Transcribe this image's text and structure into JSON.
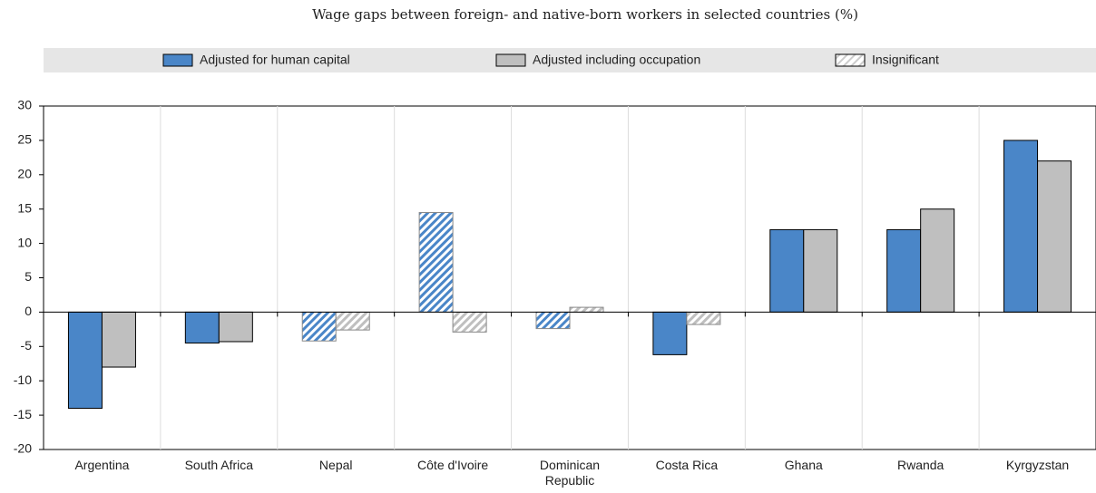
{
  "chart_data": {
    "type": "bar",
    "subtitle": "Wage gaps between foreign- and native-born workers in selected countries (%)",
    "categories": [
      "Argentina",
      "South Africa",
      "Nepal",
      "Côte d'Ivoire",
      "Dominican Republic",
      "Costa Rica",
      "Ghana",
      "Rwanda",
      "Kyrgyzstan"
    ],
    "series": [
      {
        "name": "Adjusted for human capital",
        "color": "#4a86c8",
        "values": [
          -14,
          -4.5,
          -4.2,
          14.5,
          -2.4,
          -6.2,
          12,
          12,
          25
        ],
        "insignificant": [
          false,
          false,
          true,
          true,
          true,
          false,
          false,
          false,
          false
        ]
      },
      {
        "name": "Adjusted including occupation",
        "color": "#bfbfbf",
        "values": [
          -8,
          -4.3,
          -2.6,
          -2.9,
          0.7,
          -1.8,
          12,
          15,
          22
        ],
        "insignificant": [
          false,
          false,
          true,
          true,
          true,
          true,
          false,
          false,
          false
        ]
      }
    ],
    "insignificant_label": "Insignificant",
    "ylim": [
      -20,
      30
    ],
    "yticks": [
      -20,
      -15,
      -10,
      -5,
      0,
      5,
      10,
      15,
      20,
      25,
      30
    ]
  }
}
